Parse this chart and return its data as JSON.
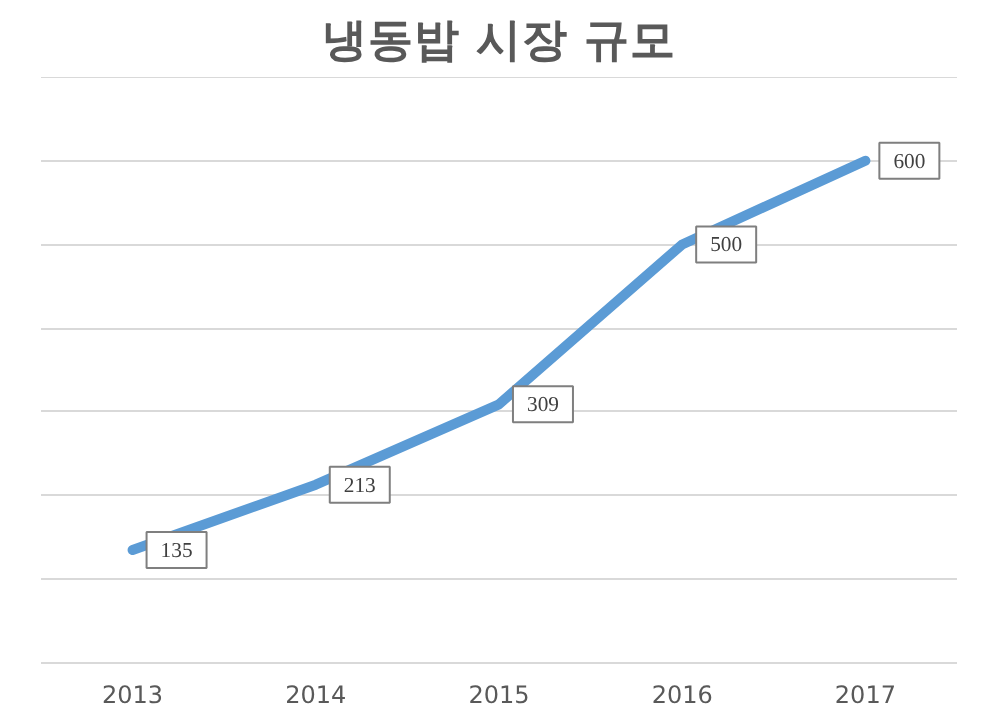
{
  "chart_data": {
    "type": "line",
    "title": "냉동밥 시장 규모",
    "categories": [
      "2013",
      "2014",
      "2015",
      "2016",
      "2017"
    ],
    "series": [
      {
        "color": "#5b9bd5",
        "values": [
          135,
          213,
          309,
          500,
          600
        ]
      }
    ],
    "ylim": [
      0,
      700
    ],
    "yticks": [
      {
        "value": 0,
        "label": null
      },
      {
        "value": 100,
        "label": null
      },
      {
        "value": 200,
        "label": null
      },
      {
        "value": 300,
        "label": null
      },
      {
        "value": 400,
        "label": null
      },
      {
        "value": 500,
        "label": null
      },
      {
        "value": 600,
        "label": null
      },
      {
        "value": 700,
        "label": null
      }
    ],
    "grid": "y",
    "tick_labels": "x",
    "data_labels": true,
    "marker": "none",
    "line_style": "solid"
  }
}
